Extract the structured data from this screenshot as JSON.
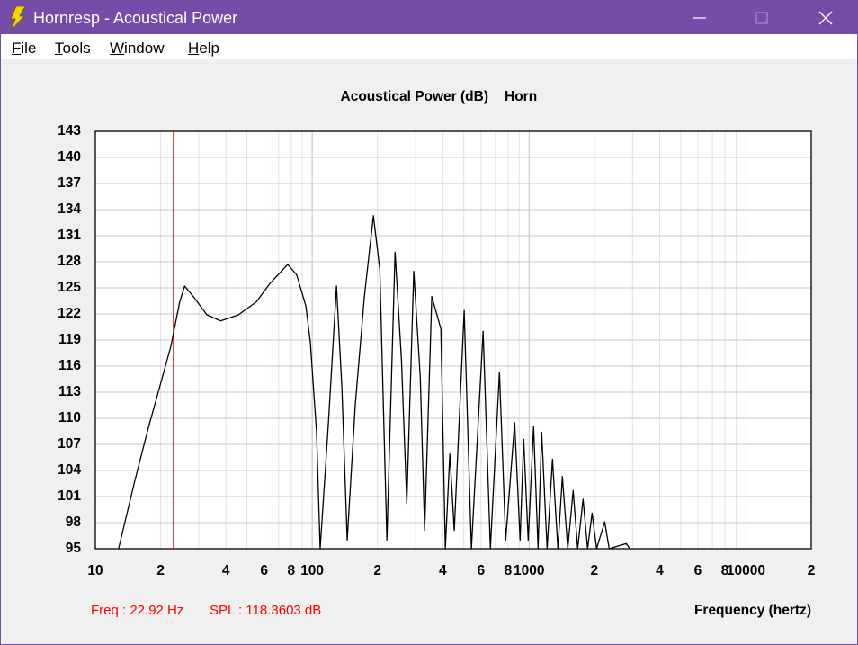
{
  "window": {
    "title": "Hornresp - Acoustical Power"
  },
  "menu": [
    "File",
    "Tools",
    "Window",
    "Help"
  ],
  "status": {
    "freq": "Freq : 22.92 Hz",
    "spl": "SPL : 118.3603 dB"
  },
  "chart_data": {
    "type": "line",
    "title": "Acoustical Power (dB)",
    "subtitle": "Horn",
    "x_label": "Frequency (hertz)",
    "x_log": true,
    "xlim": [
      10,
      20000
    ],
    "ylim": [
      95,
      143
    ],
    "xticks": [
      10,
      {
        "value": 20,
        "label": "2"
      },
      {
        "value": 40,
        "label": "4"
      },
      {
        "value": 60,
        "label": "6"
      },
      {
        "value": 80,
        "label": "8"
      },
      100,
      {
        "value": 200,
        "label": "2"
      },
      {
        "value": 400,
        "label": "4"
      },
      {
        "value": 600,
        "label": "6"
      },
      {
        "value": 800,
        "label": "8"
      },
      1000,
      {
        "value": 2000,
        "label": "2"
      },
      {
        "value": 4000,
        "label": "4"
      },
      {
        "value": 6000,
        "label": "6"
      },
      {
        "value": 8000,
        "label": "8"
      },
      10000,
      {
        "value": 20000,
        "label": "2"
      }
    ],
    "xgrid": [
      20,
      30,
      40,
      50,
      60,
      70,
      80,
      90,
      100,
      200,
      300,
      400,
      500,
      600,
      700,
      800,
      900,
      1000,
      2000,
      3000,
      4000,
      5000,
      6000,
      7000,
      8000,
      9000,
      10000
    ],
    "yticks": [
      95,
      98,
      101,
      104,
      107,
      110,
      113,
      116,
      119,
      122,
      125,
      128,
      131,
      134,
      137,
      140,
      143
    ],
    "grid": true,
    "x": [
      12.8,
      15.2,
      17.6,
      19.3,
      22.3,
      24.5,
      25.8,
      28.3,
      32.7,
      37.8,
      45.7,
      55.3,
      63.8,
      77.1,
      84.8,
      93.5,
      98,
      104.7,
      108.8,
      118.8,
      129.4,
      137,
      145,
      158,
      174,
      191.5,
      205,
      221,
      241,
      258,
      273,
      294,
      315,
      330,
      356,
      392,
      411,
      431,
      452,
      502,
      542,
      614,
      663,
      730,
      780,
      858,
      909,
      944,
      991,
      1049,
      1100,
      1143,
      1211,
      1282,
      1358,
      1424,
      1508,
      1597,
      1675,
      1774,
      1861,
      1952,
      2048,
      2232,
      2341,
      2806,
      2915
    ],
    "series": [
      {
        "color": "#000000",
        "values": [
          95,
          102.8,
          109,
          112.6,
          118.3,
          123.4,
          125.2,
          124,
          121.9,
          121.2,
          121.9,
          123.4,
          125.5,
          127.7,
          126.5,
          122.9,
          118.8,
          108.4,
          95,
          109.5,
          125.2,
          113.6,
          96,
          111.6,
          124,
          133.3,
          127.1,
          96,
          129.1,
          116.7,
          100.2,
          126.9,
          114.7,
          97.1,
          124,
          120.3,
          95,
          105.9,
          97.1,
          122.4,
          95,
          120,
          95,
          115.3,
          96,
          109.5,
          96,
          107.6,
          96,
          109.1,
          95,
          108.4,
          95,
          105.3,
          95,
          103.3,
          95,
          101.7,
          95,
          100.7,
          95,
          99.1,
          95,
          98.1,
          95,
          95.6,
          95
        ]
      }
    ],
    "cursor": {
      "x": 22.92,
      "color": "#ff0000"
    }
  }
}
